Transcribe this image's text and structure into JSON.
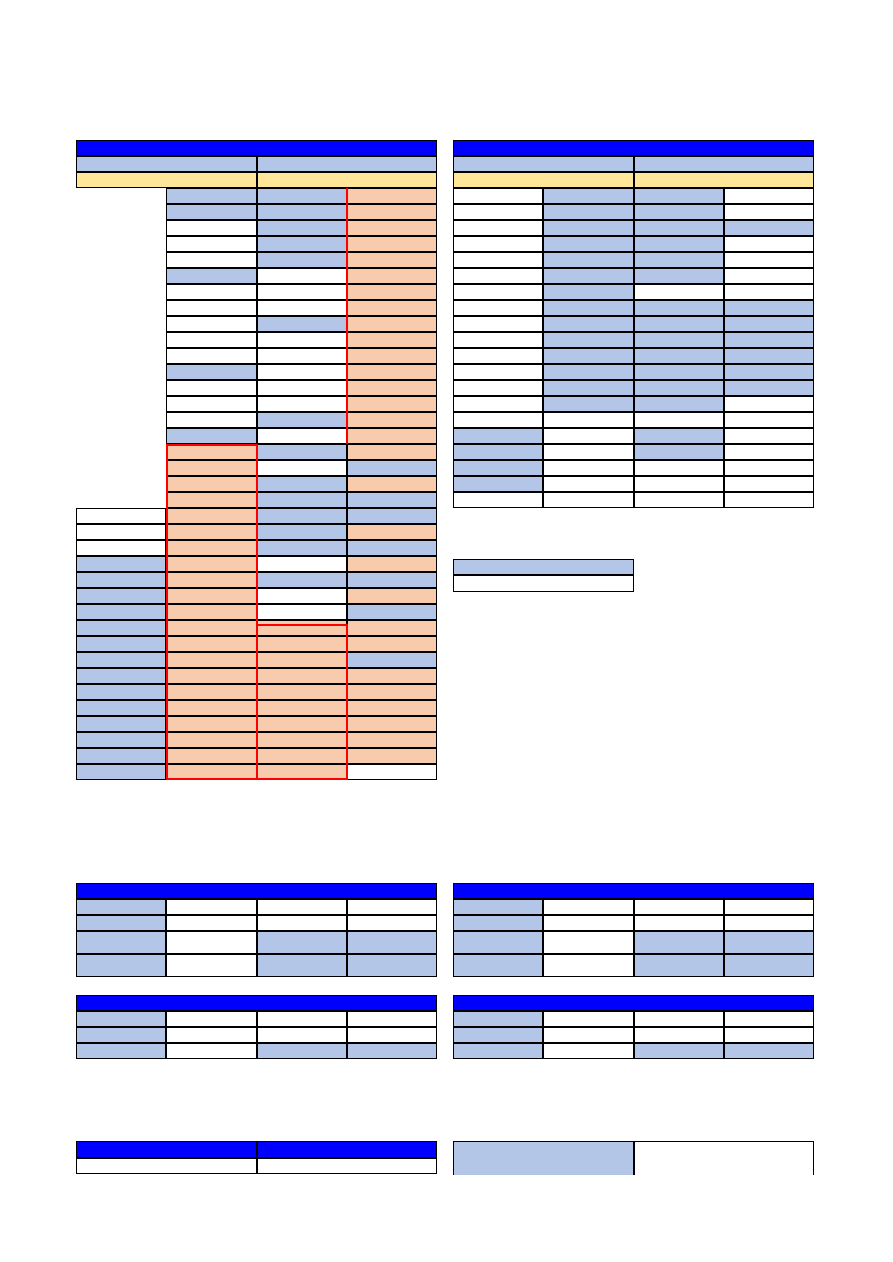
{
  "colors": {
    "header_blue": "#0000ff",
    "light_blue": "#b4c6e7",
    "peach": "#f8cbad",
    "yellow": "#ffe699",
    "white": "#ffffff",
    "highlight_border": "#ff0000"
  },
  "sheet": {
    "schedule_left": {
      "title": "",
      "subheaders": [
        "",
        ""
      ],
      "yellow_row": [
        "",
        ""
      ],
      "row_count": 38
    },
    "schedule_right": {
      "title": "",
      "subheaders": [
        "",
        ""
      ],
      "yellow_row": [
        "",
        ""
      ],
      "row_count": 21
    },
    "legend": {
      "rows": [
        "",
        ""
      ]
    },
    "summary_tables": [
      {
        "title": "",
        "rows": 4
      },
      {
        "title": "",
        "rows": 4
      },
      {
        "title": "",
        "rows": 3
      },
      {
        "title": "",
        "rows": 3
      }
    ],
    "footer_left": {
      "headers": [
        "",
        ""
      ],
      "values": [
        "",
        ""
      ]
    },
    "footer_right": {
      "label": "",
      "value": ""
    }
  }
}
